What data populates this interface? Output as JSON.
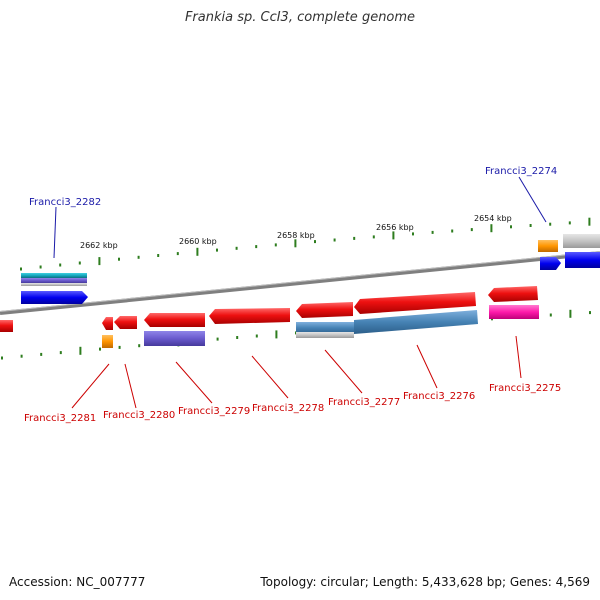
{
  "title": "Frankia sp. CcI3, complete genome",
  "footer": {
    "accession": "Accession: NC_007777",
    "topology": "Topology: circular; Length: 5,433,628 bp; Genes: 4,569"
  },
  "scale_labels": [
    "2662 kbp",
    "2660 kbp",
    "2658 kbp",
    "2656 kbp",
    "2654 kbp"
  ],
  "gene_labels": [
    {
      "id": "Francci3_2282",
      "strand": "forward"
    },
    {
      "id": "Francci3_2274",
      "strand": "forward"
    },
    {
      "id": "Francci3_2281",
      "strand": "reverse"
    },
    {
      "id": "Francci3_2280",
      "strand": "reverse"
    },
    {
      "id": "Francci3_2279",
      "strand": "reverse"
    },
    {
      "id": "Francci3_2278",
      "strand": "reverse"
    },
    {
      "id": "Francci3_2277",
      "strand": "reverse"
    },
    {
      "id": "Francci3_2276",
      "strand": "reverse"
    },
    {
      "id": "Francci3_2275",
      "strand": "reverse"
    }
  ],
  "colors": {
    "forward_label": "#1a1aa8",
    "reverse_label": "#cc0000",
    "gene_red": "#ee1111",
    "tick_green": "#2e7d1f",
    "backbone": "#8a8a8a"
  }
}
